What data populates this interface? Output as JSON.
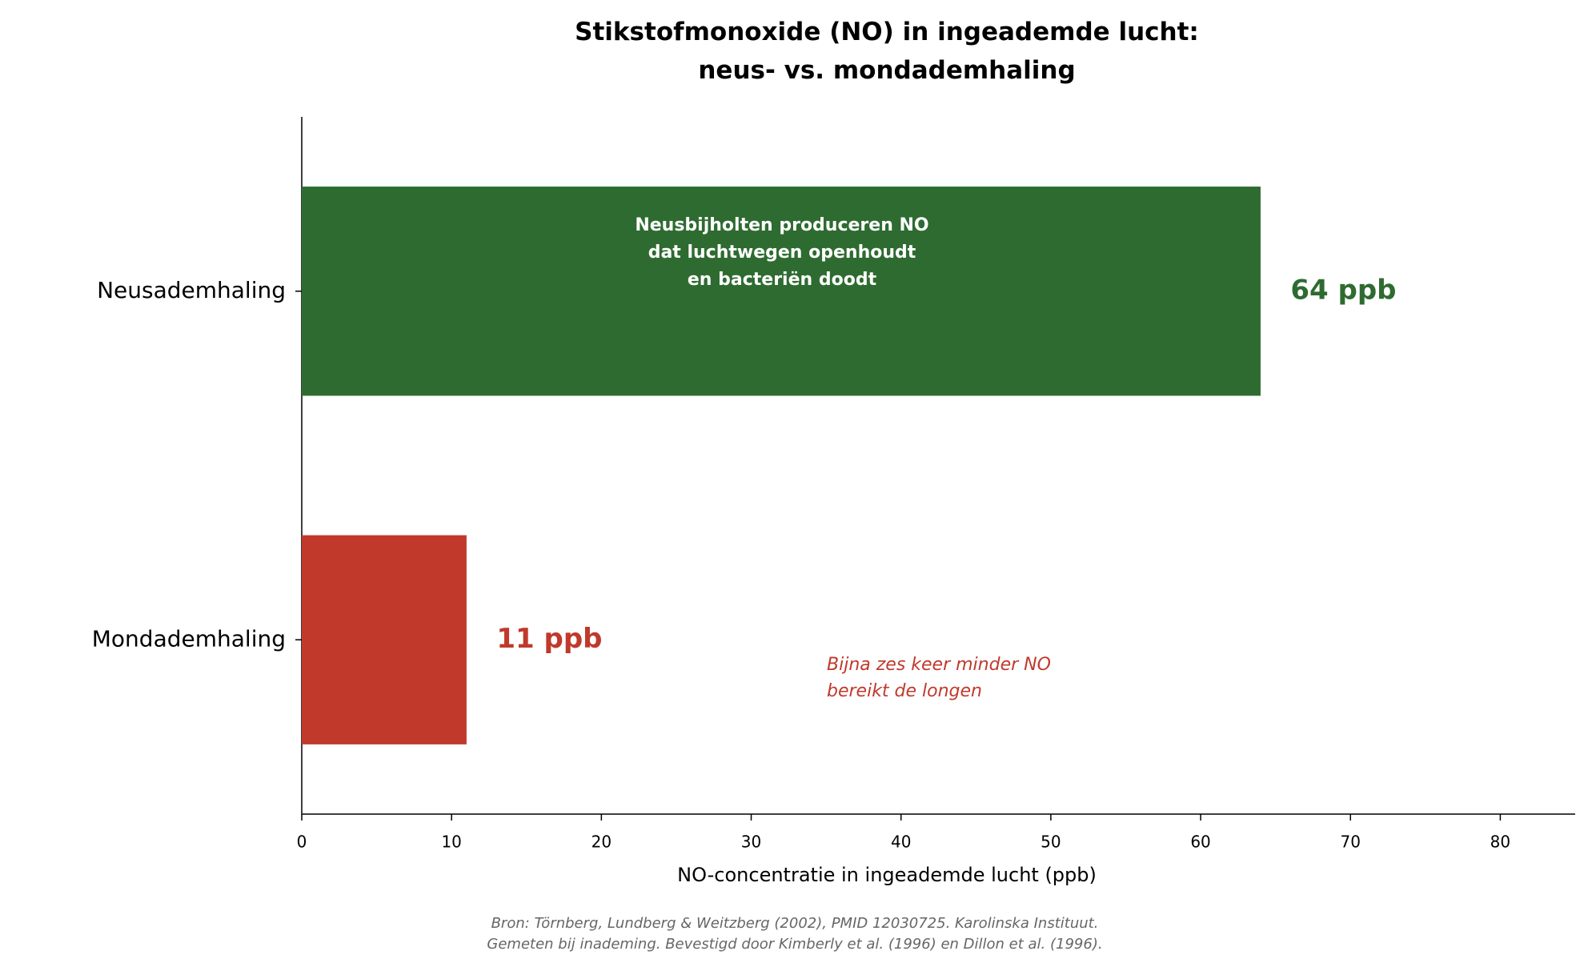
{
  "chart_data": {
    "type": "barh",
    "title": "Stikstofmonoxide (NO) in ingeademde lucht:\nneus- vs. mondademhaling",
    "categories": [
      "Neusademhaling",
      "Mondademhaling"
    ],
    "values": [
      64,
      11
    ],
    "value_labels": [
      "64 ppb",
      "11 ppb"
    ],
    "colors": [
      "#2e6b30",
      "#c0392b"
    ],
    "xlabel": "NO-concentratie in ingeademde lucht (ppb)",
    "xlim": [
      0,
      85
    ],
    "xticks": [
      0,
      10,
      20,
      30,
      40,
      50,
      60,
      70,
      80
    ],
    "annotations": [
      "Neusbijholten produceren NO\ndat luchtwegen openhoudt\nen bacteriën doodt",
      "Bijna zes keer minder NO\nbereikt de longen"
    ],
    "footer": "Bron: Törnberg, Lundberg & Weitzberg (2002), PMID 12030725. Karolinska Instituut.\nGemeten bij inademing. Bevestigd door Kimberly et al. (1996) en Dillon et al. (1996)."
  }
}
